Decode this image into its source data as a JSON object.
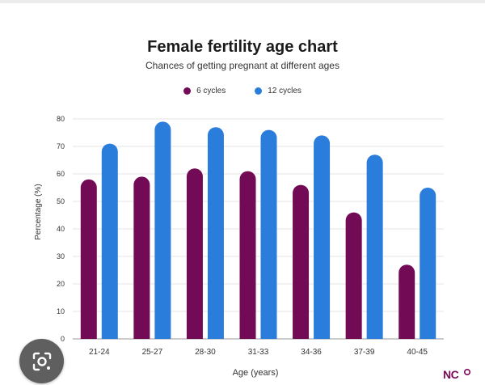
{
  "colors": {
    "six_cycles": "#730a55",
    "twelve_cycles": "#2a7ddb",
    "grid": "#e6e6e6",
    "axis": "#999999",
    "text": "#333333"
  },
  "chart_data": {
    "type": "bar",
    "title": "Female fertility age chart",
    "subtitle": "Chances of getting pregnant at different ages",
    "xlabel": "Age (years)",
    "ylabel": "Percentage (%)",
    "ylim": [
      0,
      80
    ],
    "yticks": [
      "0",
      "10",
      "20",
      "30",
      "40",
      "50",
      "60",
      "70",
      "80"
    ],
    "grid": true,
    "legend_position": "top-center",
    "categories": [
      "21-24",
      "25-27",
      "28-30",
      "31-33",
      "34-36",
      "37-39",
      "40-45"
    ],
    "series": [
      {
        "name": "6 cycles",
        "values": [
          58,
          59,
          62,
          61,
          56,
          46,
          27
        ]
      },
      {
        "name": "12 cycles",
        "values": [
          71,
          79,
          77,
          76,
          74,
          67,
          55
        ]
      }
    ]
  },
  "icons": {
    "lens": "google-lens-icon",
    "logo": "nc-logo-icon"
  },
  "logo_text": "NC"
}
